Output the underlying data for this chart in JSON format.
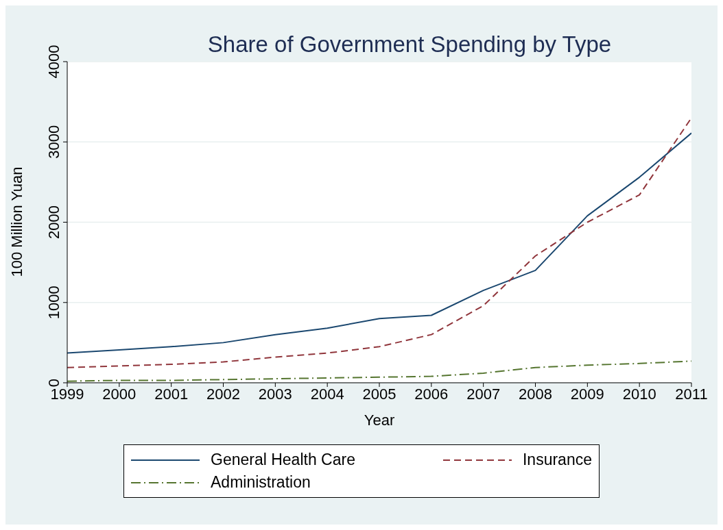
{
  "chart_data": {
    "type": "line",
    "title": "Share of Government Spending by Type",
    "xlabel": "Year",
    "ylabel": "100 Million Yuan",
    "x": [
      1999,
      2000,
      2001,
      2002,
      2003,
      2004,
      2005,
      2006,
      2007,
      2008,
      2009,
      2010,
      2011
    ],
    "xlim": [
      1999,
      2011
    ],
    "xticks": [
      1999,
      2000,
      2001,
      2002,
      2003,
      2004,
      2005,
      2006,
      2007,
      2008,
      2009,
      2010,
      2011
    ],
    "ylim": [
      0,
      4000
    ],
    "yticks": [
      0,
      1000,
      2000,
      3000,
      4000
    ],
    "grid": "y",
    "legend": "bottom",
    "marker": "none",
    "series": [
      {
        "name": "General Health Care",
        "color": "#1a476f",
        "line_style": "solid",
        "values": [
          370,
          410,
          450,
          500,
          600,
          680,
          800,
          840,
          1150,
          1400,
          2080,
          2560,
          3110
        ]
      },
      {
        "name": "Insurance",
        "color": "#90353b",
        "line_style": "dashed",
        "values": [
          190,
          210,
          230,
          260,
          320,
          370,
          450,
          600,
          960,
          1580,
          2000,
          2340,
          3300
        ]
      },
      {
        "name": "Administration",
        "color": "#55752f",
        "line_style": "dashdot",
        "values": [
          20,
          30,
          30,
          40,
          50,
          60,
          70,
          80,
          120,
          190,
          220,
          240,
          270
        ]
      }
    ]
  }
}
